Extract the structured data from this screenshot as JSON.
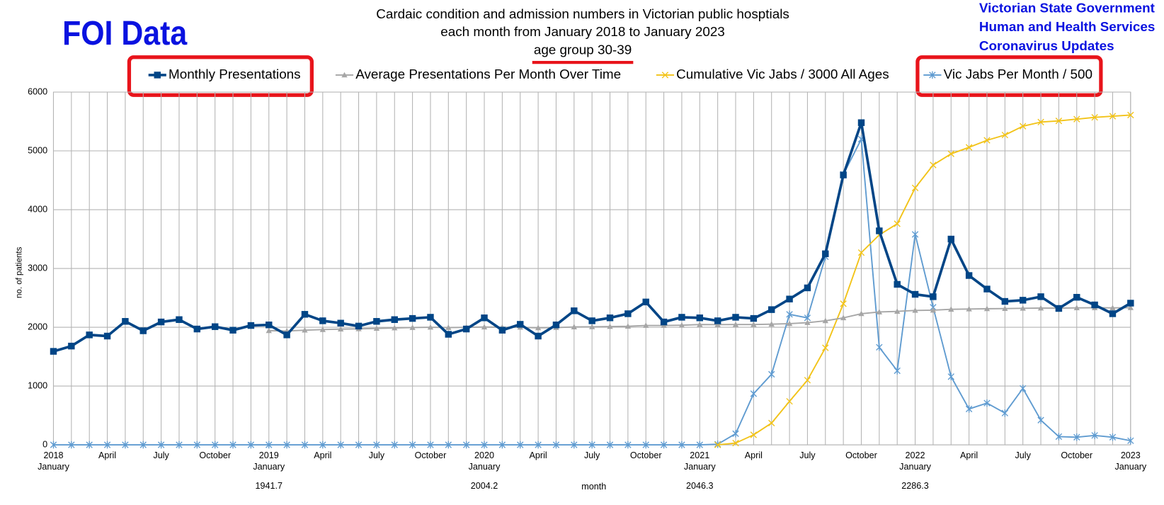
{
  "chart_data": {
    "type": "line",
    "badge": "FOI Data",
    "title": [
      "Cardaic condition and admission numbers  in Victorian public hosptials",
      "each month  from  January 2018 to January 2023",
      "age group 30-39"
    ],
    "source": [
      "Victorian State Government",
      "Human and Health Services",
      "Coronavirus Updates"
    ],
    "ylabel": "no. of patients",
    "xlabel": "month",
    "annotations": [
      "1941.7",
      "2004.2",
      "2046.3",
      "2286.3"
    ],
    "categories": [
      [
        "2018",
        "January"
      ],
      null,
      null,
      "April",
      null,
      null,
      "July",
      null,
      null,
      "October",
      null,
      null,
      [
        "2019",
        "January"
      ],
      null,
      null,
      "April",
      null,
      null,
      "July",
      null,
      null,
      "October",
      null,
      null,
      [
        "2020",
        "January"
      ],
      null,
      null,
      "April",
      null,
      null,
      "July",
      null,
      null,
      "October",
      null,
      null,
      [
        "2021",
        "January"
      ],
      null,
      null,
      "April",
      null,
      null,
      "July",
      null,
      null,
      "October",
      null,
      null,
      [
        "2022",
        "January"
      ],
      null,
      null,
      "April",
      null,
      null,
      "July",
      null,
      null,
      "October",
      null,
      null,
      [
        "2023",
        "January"
      ]
    ],
    "ylim": [
      0,
      6000
    ],
    "yticks": [
      0,
      1000,
      2000,
      3000,
      4000,
      5000,
      6000
    ],
    "grid": true,
    "series": [
      {
        "name": "Monthly Presentations",
        "color": "#004586",
        "marker": "square",
        "values": [
          1590,
          1680,
          1870,
          1850,
          2100,
          1940,
          2090,
          2130,
          1970,
          2010,
          1950,
          2030,
          2040,
          1870,
          2220,
          2110,
          2070,
          2020,
          2100,
          2130,
          2150,
          2170,
          1880,
          1970,
          2160,
          1950,
          2050,
          1850,
          2040,
          2280,
          2110,
          2160,
          2230,
          2430,
          2090,
          2170,
          2160,
          2110,
          2170,
          2150,
          2300,
          2480,
          2670,
          3250,
          4590,
          5480,
          3640,
          2730,
          2560,
          2520,
          3500,
          2880,
          2650,
          2440,
          2460,
          2520,
          2320,
          2510,
          2380,
          2230,
          2410
        ]
      },
      {
        "name": "Average Presentations Per Month Over Time",
        "color": "#a6a6a6",
        "marker": "triangle",
        "values": [
          null,
          null,
          null,
          null,
          null,
          null,
          null,
          null,
          null,
          null,
          null,
          null,
          1942,
          1937,
          1950,
          1960,
          1968,
          1973,
          1980,
          1988,
          1995,
          2000,
          1995,
          1998,
          2004,
          2000,
          2000,
          1990,
          1995,
          2005,
          2008,
          2012,
          2017,
          2030,
          2030,
          2035,
          2046,
          2045,
          2046,
          2047,
          2052,
          2062,
          2078,
          2110,
          2160,
          2230,
          2260,
          2270,
          2286,
          2290,
          2305,
          2310,
          2315,
          2318,
          2322,
          2326,
          2325,
          2330,
          2332,
          2330,
          2333
        ]
      },
      {
        "name": "Cumulative Vic Jabs / 3000 All Ages",
        "color": "#f2c318",
        "marker": "x",
        "values": [
          null,
          null,
          null,
          null,
          null,
          null,
          null,
          null,
          null,
          null,
          null,
          null,
          null,
          null,
          null,
          null,
          null,
          null,
          null,
          null,
          null,
          null,
          null,
          null,
          null,
          null,
          null,
          null,
          null,
          null,
          null,
          null,
          null,
          null,
          null,
          null,
          null,
          0,
          30,
          170,
          370,
          740,
          1100,
          1650,
          2400,
          3270,
          3570,
          3760,
          4370,
          4760,
          4950,
          5060,
          5180,
          5270,
          5420,
          5490,
          5510,
          5540,
          5570,
          5590,
          5610
        ]
      },
      {
        "name": "Vic Jabs Per Month / 500",
        "color": "#5f9bd0",
        "marker": "star",
        "values": [
          0,
          0,
          0,
          0,
          0,
          0,
          0,
          0,
          0,
          0,
          0,
          0,
          0,
          0,
          0,
          0,
          0,
          0,
          0,
          0,
          0,
          0,
          0,
          0,
          0,
          0,
          0,
          0,
          0,
          0,
          0,
          0,
          0,
          0,
          0,
          0,
          0,
          10,
          190,
          870,
          1200,
          2220,
          2160,
          3200,
          4600,
          5200,
          1660,
          1260,
          3580,
          2340,
          1160,
          610,
          710,
          540,
          960,
          420,
          140,
          130,
          160,
          130,
          70
        ]
      }
    ]
  }
}
